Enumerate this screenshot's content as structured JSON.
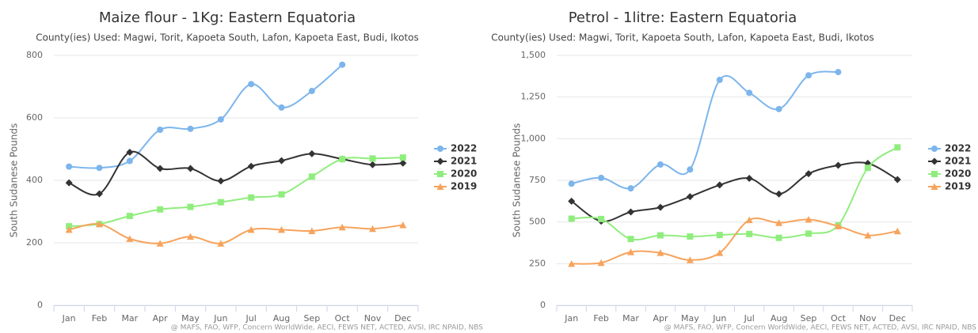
{
  "chart_data": [
    {
      "type": "line",
      "smooth": true,
      "title": "Maize flour - 1Kg: Eastern Equatoria",
      "subtitle": "County(ies) Used: Magwi, Torit, Kapoeta South, Lafon, Kapoeta East, Budi, Ikotos",
      "ylabel": "South Sudanese Pounds",
      "credits": "@ MAFS, FAO, WFP, Concern WorldWide, AECI, FEWS NET, ACTED, AVSI, IRC NPAID, NBS",
      "categories": [
        "Jan",
        "Feb",
        "Mar",
        "Apr",
        "May",
        "Jun",
        "Jul",
        "Aug",
        "Sep",
        "Oct",
        "Nov",
        "Dec"
      ],
      "ylim": [
        0,
        800
      ],
      "yticks": [
        0,
        200,
        400,
        600,
        800
      ],
      "grid": true,
      "legend": "right",
      "series": [
        {
          "name": "2022",
          "color": "#7cb5ec",
          "marker": "circle",
          "values": [
            444,
            440,
            462,
            562,
            565,
            595,
            708,
            633,
            686,
            770,
            null,
            null
          ]
        },
        {
          "name": "2021",
          "color": "#333333",
          "marker": "diamond",
          "values": [
            392,
            357,
            490,
            438,
            438,
            398,
            445,
            463,
            485,
            468,
            450,
            455
          ]
        },
        {
          "name": "2020",
          "color": "#90ed7d",
          "marker": "square",
          "values": [
            253,
            260,
            286,
            307,
            315,
            330,
            345,
            355,
            412,
            468,
            470,
            473
          ]
        },
        {
          "name": "2019",
          "color": "#f7a35c",
          "marker": "triangle",
          "values": [
            242,
            260,
            213,
            198,
            220,
            198,
            242,
            242,
            238,
            250,
            245,
            257
          ]
        }
      ]
    },
    {
      "type": "line",
      "smooth": true,
      "title": "Petrol - 1litre: Eastern Equatoria",
      "subtitle": "County(ies) Used: Magwi, Torit, Kapoeta South, Lafon, Kapoeta East, Budi, Ikotos",
      "ylabel": "South Sudanese Pounds",
      "credits": "@ MAFS, FAO, WFP, Concern WorldWide, AECI, FEWS NET, ACTED, AVSI, IRC NPAID, NBS",
      "categories": [
        "Jan",
        "Feb",
        "Mar",
        "Apr",
        "May",
        "Jun",
        "Jul",
        "Aug",
        "Sep",
        "Oct",
        "Nov",
        "Dec"
      ],
      "ylim": [
        0,
        1500
      ],
      "yticks": [
        0,
        250,
        500,
        750,
        {
          "value": 1000,
          "label": "1,000"
        },
        {
          "value": 1250,
          "label": "1,250"
        },
        {
          "value": 1500,
          "label": "1,500"
        }
      ],
      "grid": true,
      "legend": "right",
      "series": [
        {
          "name": "2022",
          "color": "#7cb5ec",
          "marker": "circle",
          "values": [
            730,
            765,
            702,
            845,
            815,
            1353,
            1275,
            1178,
            1380,
            1400,
            null,
            null
          ]
        },
        {
          "name": "2021",
          "color": "#333333",
          "marker": "diamond",
          "values": [
            625,
            505,
            560,
            588,
            652,
            722,
            762,
            668,
            790,
            840,
            852,
            755
          ]
        },
        {
          "name": "2020",
          "color": "#90ed7d",
          "marker": "square",
          "values": [
            520,
            518,
            398,
            420,
            413,
            422,
            428,
            405,
            430,
            480,
            825,
            948
          ]
        },
        {
          "name": "2019",
          "color": "#f7a35c",
          "marker": "triangle",
          "values": [
            250,
            255,
            320,
            315,
            272,
            315,
            512,
            495,
            515,
            475,
            420,
            445
          ]
        }
      ]
    }
  ]
}
